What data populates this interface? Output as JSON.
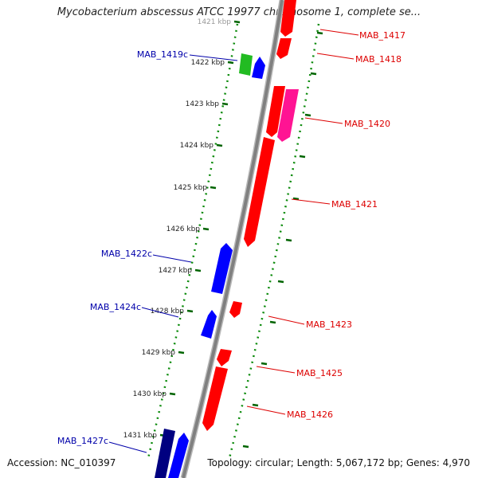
{
  "title": "Mycobacterium abscessus ATCC 19977 chromosome 1, complete se...",
  "footer": {
    "accession": "Accession: NC_010397",
    "topology": "Topology: circular; Length: 5,067,172 bp; Genes: 4,970"
  },
  "colors": {
    "forward_gene": "#ff0000",
    "forward_gene_alt": "#ff1493",
    "reverse_gene": "#0000ff",
    "reverse_gene_dark": "#000080",
    "rna_gene": "#22bb22",
    "backbone": "#808080",
    "tick": "#006400",
    "forward_label": "#dd0000",
    "reverse_label": "#0000aa"
  },
  "ticks": [
    "1421 kbp",
    "1422 kbp",
    "1423 kbp",
    "1424 kbp",
    "1425 kbp",
    "1426 kbp",
    "1427 kbp",
    "1428 kbp",
    "1429 kbp",
    "1430 kbp",
    "1431 kbp"
  ],
  "forward_genes": [
    "MAB_1417",
    "MAB_1418",
    "MAB_1420",
    "MAB_1421",
    "MAB_1423",
    "MAB_1425",
    "MAB_1426"
  ],
  "reverse_genes": [
    "MAB_1419c",
    "MAB_1422c",
    "MAB_1424c",
    "MAB_1427c"
  ]
}
